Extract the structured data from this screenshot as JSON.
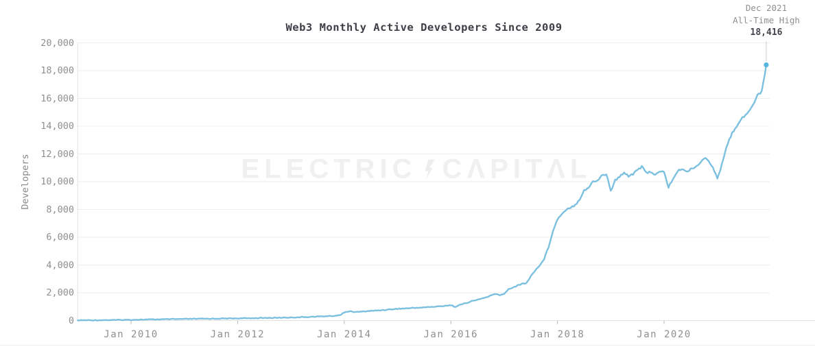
{
  "title": "Web3 Monthly Active Developers Since 2009",
  "watermark": {
    "brand": "Electric Capital",
    "display_left": "ELECTRIC",
    "display_right": "CΛPITΛL",
    "icon": "lightning-bolt-icon",
    "color": "#f0f0f0"
  },
  "annotation": {
    "line1": "Dec 2021",
    "line2": "All-Time High",
    "value_display": "18,416"
  },
  "chart_data": {
    "type": "line",
    "title": "Web3 Monthly Active Developers Since 2009",
    "xlabel": "",
    "ylabel": "Developers",
    "x_monthly_from": "2009-01",
    "x_monthly_to": "2021-12",
    "ylim": [
      0,
      20000
    ],
    "grid": "horizontal",
    "legend": "none",
    "line_color": "#7cc0e0",
    "dot_color": "#58b6e0",
    "y_ticks": [
      0,
      2000,
      4000,
      6000,
      8000,
      10000,
      12000,
      14000,
      16000,
      18000,
      20000
    ],
    "y_tick_labels": [
      "0",
      "2,000",
      "4,000",
      "6,000",
      "8,000",
      "10,000",
      "12,000",
      "14,000",
      "16,000",
      "18,000",
      "20,000"
    ],
    "x_tick_month_indices": [
      12,
      36,
      60,
      84,
      108,
      132
    ],
    "x_tick_labels": [
      "Jan 2010",
      "Jan 2012",
      "Jan 2014",
      "Jan 2016",
      "Jan 2018",
      "Jan 2020"
    ],
    "highlight_point": {
      "x": "2021-12",
      "value": 18416,
      "value_display": "18,416",
      "label": "Dec 2021",
      "sublabel": "All-Time High"
    },
    "series": [
      {
        "name": "Monthly Active Developers",
        "monthly_values": [
          15,
          18,
          20,
          22,
          25,
          28,
          30,
          33,
          36,
          40,
          45,
          50,
          55,
          60,
          65,
          70,
          75,
          80,
          85,
          88,
          92,
          96,
          100,
          105,
          110,
          114,
          118,
          122,
          126,
          130,
          133,
          136,
          140,
          144,
          148,
          152,
          156,
          160,
          165,
          170,
          175,
          180,
          185,
          190,
          196,
          202,
          208,
          215,
          222,
          230,
          240,
          250,
          262,
          275,
          288,
          300,
          315,
          330,
          345,
          380,
          600,
          660,
          630,
          615,
          645,
          670,
          695,
          715,
          740,
          765,
          790,
          820,
          845,
          860,
          880,
          900,
          915,
          930,
          950,
          970,
          990,
          1010,
          1040,
          1080,
          1100,
          1000,
          1120,
          1220,
          1320,
          1420,
          1500,
          1580,
          1680,
          1800,
          1900,
          1840,
          1900,
          2280,
          2380,
          2520,
          2640,
          2700,
          3180,
          3640,
          3950,
          4450,
          5300,
          6500,
          7280,
          7700,
          8020,
          8160,
          8330,
          8750,
          9380,
          9560,
          10000,
          10080,
          10450,
          10560,
          9330,
          10100,
          10330,
          10700,
          10420,
          10560,
          10900,
          11060,
          10620,
          10740,
          10500,
          10680,
          10720,
          9600,
          10200,
          10720,
          10950,
          10700,
          10920,
          11080,
          11280,
          11700,
          11520,
          11080,
          10170,
          11200,
          12480,
          13280,
          13880,
          14360,
          14690,
          15080,
          15480,
          16180,
          16560,
          18416
        ]
      }
    ]
  }
}
